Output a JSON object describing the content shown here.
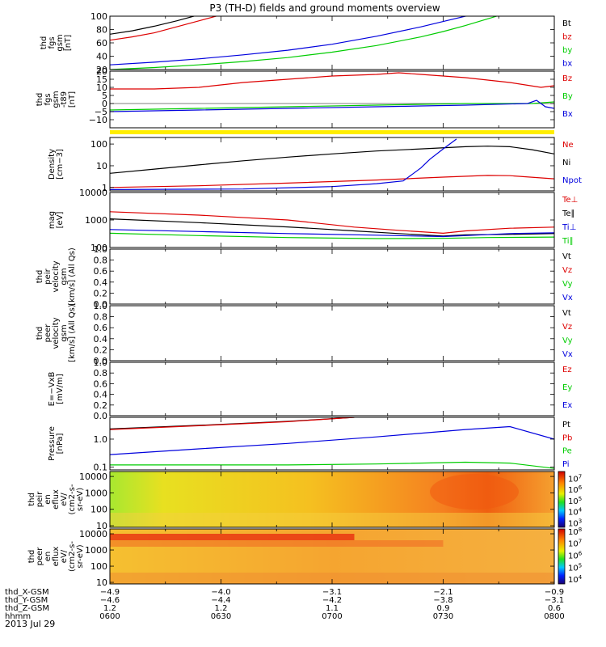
{
  "title": "P3 (TH-D) fields and ground moments overview",
  "date_label": "2013 Jul 29",
  "colors": {
    "black": "#000000",
    "red": "#dd0000",
    "green": "#00cc00",
    "blue": "#0000dd",
    "yellow": "#ffee00"
  },
  "chart_data": [
    {
      "type": "line",
      "id": "p1",
      "ylabel": [
        "thd",
        "fgs",
        "gsm",
        "[nT]"
      ],
      "yscale": "linear",
      "ylim": [
        20,
        100
      ],
      "ticks": [
        {
          "v": 20,
          "t": "20"
        },
        {
          "v": 40,
          "t": "40"
        },
        {
          "v": 60,
          "t": "60"
        },
        {
          "v": 80,
          "t": "80"
        },
        {
          "v": 100,
          "t": "100"
        }
      ],
      "legend": [
        {
          "label": "Bt",
          "color": "black"
        },
        {
          "label": "bz",
          "color": "red"
        },
        {
          "label": "by",
          "color": "green"
        },
        {
          "label": "bx",
          "color": "blue"
        }
      ],
      "series": [
        {
          "name": "Bt",
          "color": "black",
          "x": [
            0,
            0.05,
            0.1,
            0.15,
            0.2
          ],
          "y": [
            73,
            78,
            85,
            93,
            102
          ]
        },
        {
          "name": "bz",
          "color": "red",
          "x": [
            0,
            0.05,
            0.1,
            0.15,
            0.2,
            0.25
          ],
          "y": [
            64,
            69,
            75,
            84,
            93,
            102
          ]
        },
        {
          "name": "by",
          "color": "green",
          "x": [
            0,
            0.1,
            0.2,
            0.3,
            0.4,
            0.5,
            0.6,
            0.7,
            0.75,
            0.8,
            0.85,
            0.88
          ],
          "y": [
            20,
            23,
            27,
            32,
            38,
            46,
            56,
            69,
            77,
            86,
            96,
            102
          ]
        },
        {
          "name": "bx",
          "color": "blue",
          "x": [
            0,
            0.1,
            0.2,
            0.3,
            0.4,
            0.5,
            0.6,
            0.7,
            0.75,
            0.8,
            0.84
          ],
          "y": [
            27,
            31,
            36,
            42,
            49,
            58,
            70,
            84,
            92,
            100,
            102
          ]
        }
      ]
    },
    {
      "type": "line",
      "id": "p2",
      "ylabel": [
        "thd",
        "fgs",
        "gsm",
        "-t89",
        "[nT]"
      ],
      "yscale": "linear",
      "ylim": [
        -15,
        20
      ],
      "ticks": [
        {
          "v": -10,
          "t": "−10"
        },
        {
          "v": -5,
          "t": "−5"
        },
        {
          "v": 0,
          "t": "0"
        },
        {
          "v": 5,
          "t": "5"
        },
        {
          "v": 10,
          "t": "10"
        },
        {
          "v": 15,
          "t": "15"
        },
        {
          "v": 20,
          "t": "20"
        }
      ],
      "zero_line": true,
      "legend": [
        {
          "label": "Bz",
          "color": "red"
        },
        {
          "label": "By",
          "color": "green"
        },
        {
          "label": "Bx",
          "color": "blue"
        }
      ],
      "series": [
        {
          "name": "Bz",
          "color": "red",
          "x": [
            0,
            0.1,
            0.2,
            0.3,
            0.4,
            0.5,
            0.6,
            0.65,
            0.7,
            0.8,
            0.9,
            0.97,
            1.0
          ],
          "y": [
            9,
            9,
            10,
            13,
            15,
            17,
            18,
            19,
            18,
            16,
            13,
            10,
            11
          ]
        },
        {
          "name": "By",
          "color": "green",
          "x": [
            0,
            0.2,
            0.4,
            0.6,
            0.8,
            0.95,
            1.0
          ],
          "y": [
            -4,
            -3,
            -2,
            -1,
            0,
            0,
            1
          ]
        },
        {
          "name": "Bx",
          "color": "blue",
          "x": [
            0,
            0.2,
            0.4,
            0.6,
            0.8,
            0.94,
            0.96,
            0.98,
            1.0
          ],
          "y": [
            -5,
            -4,
            -3,
            -2,
            -1,
            0,
            2,
            -2,
            -3
          ]
        }
      ]
    },
    {
      "type": "line",
      "id": "p3",
      "ylabel": [
        "Density",
        "[cm−3]"
      ],
      "yscale": "log",
      "ylim": [
        0.7,
        200
      ],
      "ticks": [
        {
          "v": 1,
          "t": "1"
        },
        {
          "v": 10,
          "t": "10"
        },
        {
          "v": 100,
          "t": "100"
        }
      ],
      "legend": [
        {
          "label": "Ne",
          "color": "red"
        },
        {
          "label": "Ni",
          "color": "black"
        },
        {
          "label": "Npot",
          "color": "blue"
        }
      ],
      "series": [
        {
          "name": "Ne",
          "color": "red",
          "x": [
            0,
            0.2,
            0.4,
            0.6,
            0.75,
            0.85,
            0.9,
            1.0
          ],
          "y": [
            1,
            1.2,
            1.6,
            2.2,
            3,
            3.6,
            3.5,
            2.5
          ]
        },
        {
          "name": "Ni",
          "color": "black",
          "x": [
            0,
            0.1,
            0.2,
            0.3,
            0.4,
            0.5,
            0.6,
            0.7,
            0.8,
            0.85,
            0.9,
            0.95,
            1.0
          ],
          "y": [
            4.5,
            7,
            11,
            17,
            25,
            35,
            48,
            60,
            75,
            80,
            75,
            55,
            35
          ]
        },
        {
          "name": "Npot",
          "color": "blue",
          "x": [
            0,
            0.3,
            0.5,
            0.6,
            0.66,
            0.68,
            0.7,
            0.72,
            0.75,
            0.78
          ],
          "y": [
            0.8,
            0.85,
            1.1,
            1.5,
            2,
            4,
            8,
            20,
            60,
            170
          ]
        }
      ]
    },
    {
      "type": "line",
      "id": "p4",
      "ylabel": [
        "mag",
        "[eV]"
      ],
      "yscale": "log",
      "ylim": [
        100,
        10000
      ],
      "ticks": [
        {
          "v": 100,
          "t": "100"
        },
        {
          "v": 1000,
          "t": "1000"
        },
        {
          "v": 10000,
          "t": "10000"
        }
      ],
      "legend": [
        {
          "label": "Te⊥",
          "color": "red"
        },
        {
          "label": "Te∥",
          "color": "black"
        },
        {
          "label": "Ti⊥",
          "color": "blue"
        },
        {
          "label": "Ti∥",
          "color": "green"
        }
      ],
      "series": [
        {
          "name": "Te⊥",
          "color": "red",
          "x": [
            0,
            0.2,
            0.4,
            0.55,
            0.65,
            0.75,
            0.8,
            0.9,
            1.0
          ],
          "y": [
            2000,
            1500,
            1000,
            550,
            420,
            330,
            400,
            500,
            550
          ]
        },
        {
          "name": "Te∥",
          "color": "black",
          "x": [
            0,
            0.2,
            0.4,
            0.55,
            0.65,
            0.75,
            0.8,
            0.9,
            1.0
          ],
          "y": [
            1100,
            800,
            560,
            400,
            320,
            260,
            290,
            300,
            320
          ]
        },
        {
          "name": "Ti⊥",
          "color": "blue",
          "x": [
            0,
            0.2,
            0.4,
            0.6,
            0.75,
            0.8,
            0.9,
            1.0
          ],
          "y": [
            450,
            380,
            320,
            280,
            250,
            270,
            320,
            340
          ]
        },
        {
          "name": "Ti∥",
          "color": "green",
          "x": [
            0,
            0.2,
            0.4,
            0.6,
            0.75,
            0.85,
            1.0
          ],
          "y": [
            330,
            270,
            230,
            210,
            215,
            230,
            240
          ]
        }
      ]
    },
    {
      "type": "line",
      "id": "p5",
      "ylabel": [
        "thd",
        "peir",
        "velocity",
        "gsm",
        "[km/s] (All Qs)"
      ],
      "yscale": "linear",
      "ylim": [
        0,
        1
      ],
      "ticks": [
        {
          "v": 0,
          "t": "0.0"
        },
        {
          "v": 0.2,
          "t": "0.2"
        },
        {
          "v": 0.4,
          "t": "0.4"
        },
        {
          "v": 0.6,
          "t": "0.6"
        },
        {
          "v": 0.8,
          "t": "0.8"
        },
        {
          "v": 1,
          "t": "1.0"
        }
      ],
      "legend": [
        {
          "label": "Vt",
          "color": "black"
        },
        {
          "label": "Vz",
          "color": "red"
        },
        {
          "label": "Vy",
          "color": "green"
        },
        {
          "label": "Vx",
          "color": "blue"
        }
      ],
      "series": []
    },
    {
      "type": "line",
      "id": "p6",
      "ylabel": [
        "thd",
        "peer",
        "velocity",
        "gsm",
        "[km/s] (All Qs)"
      ],
      "yscale": "linear",
      "ylim": [
        0,
        1
      ],
      "ticks": [
        {
          "v": 0,
          "t": "0.0"
        },
        {
          "v": 0.2,
          "t": "0.2"
        },
        {
          "v": 0.4,
          "t": "0.4"
        },
        {
          "v": 0.6,
          "t": "0.6"
        },
        {
          "v": 0.8,
          "t": "0.8"
        },
        {
          "v": 1,
          "t": "1.0"
        }
      ],
      "legend": [
        {
          "label": "Vt",
          "color": "black"
        },
        {
          "label": "Vz",
          "color": "red"
        },
        {
          "label": "Vy",
          "color": "green"
        },
        {
          "label": "Vx",
          "color": "blue"
        }
      ],
      "series": []
    },
    {
      "type": "line",
      "id": "p7",
      "ylabel": [
        "E=−VxB",
        "[mV/m]"
      ],
      "yscale": "linear",
      "ylim": [
        0,
        1
      ],
      "ticks": [
        {
          "v": 0,
          "t": "0.0"
        },
        {
          "v": 0.2,
          "t": "0.2"
        },
        {
          "v": 0.4,
          "t": "0.4"
        },
        {
          "v": 0.6,
          "t": "0.6"
        },
        {
          "v": 0.8,
          "t": "0.8"
        },
        {
          "v": 1,
          "t": "1.0"
        }
      ],
      "legend": [
        {
          "label": "Ez",
          "color": "red"
        },
        {
          "label": "Ey",
          "color": "green"
        },
        {
          "label": "Ex",
          "color": "blue"
        }
      ],
      "series": []
    },
    {
      "type": "line",
      "id": "p8",
      "ylabel": [
        "Pressure",
        "[nPa]"
      ],
      "yscale": "log",
      "ylim": [
        0.08,
        6
      ],
      "ticks": [
        {
          "v": 0.1,
          "t": "0.1"
        },
        {
          "v": 1,
          "t": "1.0"
        }
      ],
      "legend": [
        {
          "label": "Pt",
          "color": "black"
        },
        {
          "label": "Pb",
          "color": "red"
        },
        {
          "label": "Pe",
          "color": "green"
        },
        {
          "label": "Pi",
          "color": "blue"
        }
      ],
      "series": [
        {
          "name": "Pt",
          "color": "black",
          "x": [
            0,
            0.2,
            0.4,
            0.55
          ],
          "y": [
            2.3,
            3.1,
            4.3,
            6
          ]
        },
        {
          "name": "Pb",
          "color": "red",
          "x": [
            0,
            0.2,
            0.4,
            0.55
          ],
          "y": [
            2.2,
            3.0,
            4.2,
            6
          ]
        },
        {
          "name": "Pe",
          "color": "green",
          "x": [
            0,
            0.2,
            0.4,
            0.6,
            0.8,
            0.9,
            1.0
          ],
          "y": [
            0.12,
            0.12,
            0.12,
            0.13,
            0.15,
            0.14,
            0.09
          ]
        },
        {
          "name": "Pi",
          "color": "blue",
          "x": [
            0,
            0.2,
            0.4,
            0.6,
            0.8,
            0.9,
            1.0
          ],
          "y": [
            0.28,
            0.45,
            0.7,
            1.2,
            2.2,
            2.8,
            1
          ]
        }
      ]
    },
    {
      "type": "heatmap",
      "id": "p9",
      "ylabel": [
        "thd",
        "peir",
        "en",
        "eflux",
        "eV/",
        "(cm2-s-",
        "sr-eV)"
      ],
      "yscale": "log",
      "ylim": [
        8,
        20000
      ],
      "ticks": [
        {
          "v": 10,
          "t": "10"
        },
        {
          "v": 100,
          "t": "100"
        },
        {
          "v": 1000,
          "t": "1000"
        },
        {
          "v": 10000,
          "t": "10000"
        }
      ],
      "colorbar": {
        "ticks": [
          {
            "v": 3,
            "t": "10",
            "e": "3"
          },
          {
            "v": 4,
            "t": "10",
            "e": "4"
          },
          {
            "v": 5,
            "t": "10",
            "e": "5"
          },
          {
            "v": 6,
            "t": "10",
            "e": "6"
          },
          {
            "v": 7,
            "t": "10",
            "e": "7"
          }
        ],
        "range": [
          2.6,
          7.6
        ]
      }
    },
    {
      "type": "heatmap",
      "id": "p10",
      "ylabel": [
        "thd",
        "peer",
        "en",
        "eflux",
        "eV/",
        "(cm2-s-",
        "sr-eV)"
      ],
      "yscale": "log",
      "ylim": [
        8,
        20000
      ],
      "ticks": [
        {
          "v": 10,
          "t": "10"
        },
        {
          "v": 100,
          "t": "100"
        },
        {
          "v": 1000,
          "t": "1000"
        },
        {
          "v": 10000,
          "t": "10000"
        }
      ],
      "colorbar": {
        "ticks": [
          {
            "v": 4,
            "t": "10",
            "e": "4"
          },
          {
            "v": 5,
            "t": "10",
            "e": "5"
          },
          {
            "v": 6,
            "t": "10",
            "e": "6"
          },
          {
            "v": 7,
            "t": "10",
            "e": "7"
          },
          {
            "v": 8,
            "t": "10",
            "e": "8"
          }
        ],
        "range": [
          3.6,
          8.2
        ]
      }
    }
  ],
  "x_axis": {
    "row_labels": [
      "thd_X-GSM",
      "thd_Y-GSM",
      "thd_Z-GSM",
      "hhmm"
    ],
    "ticks": [
      {
        "pos": 0.0,
        "vals": [
          "−4.9",
          "−4.6",
          "1.2",
          "0600"
        ]
      },
      {
        "pos": 0.25,
        "vals": [
          "−4.0",
          "−4.4",
          "1.2",
          "0630"
        ]
      },
      {
        "pos": 0.5,
        "vals": [
          "−3.1",
          "−4.2",
          "1.1",
          "0700"
        ]
      },
      {
        "pos": 0.75,
        "vals": [
          "−2.1",
          "−3.8",
          "0.9",
          "0730"
        ]
      },
      {
        "pos": 1.0,
        "vals": [
          "−0.9",
          "−3.1",
          "0.6",
          "0800"
        ]
      }
    ]
  }
}
